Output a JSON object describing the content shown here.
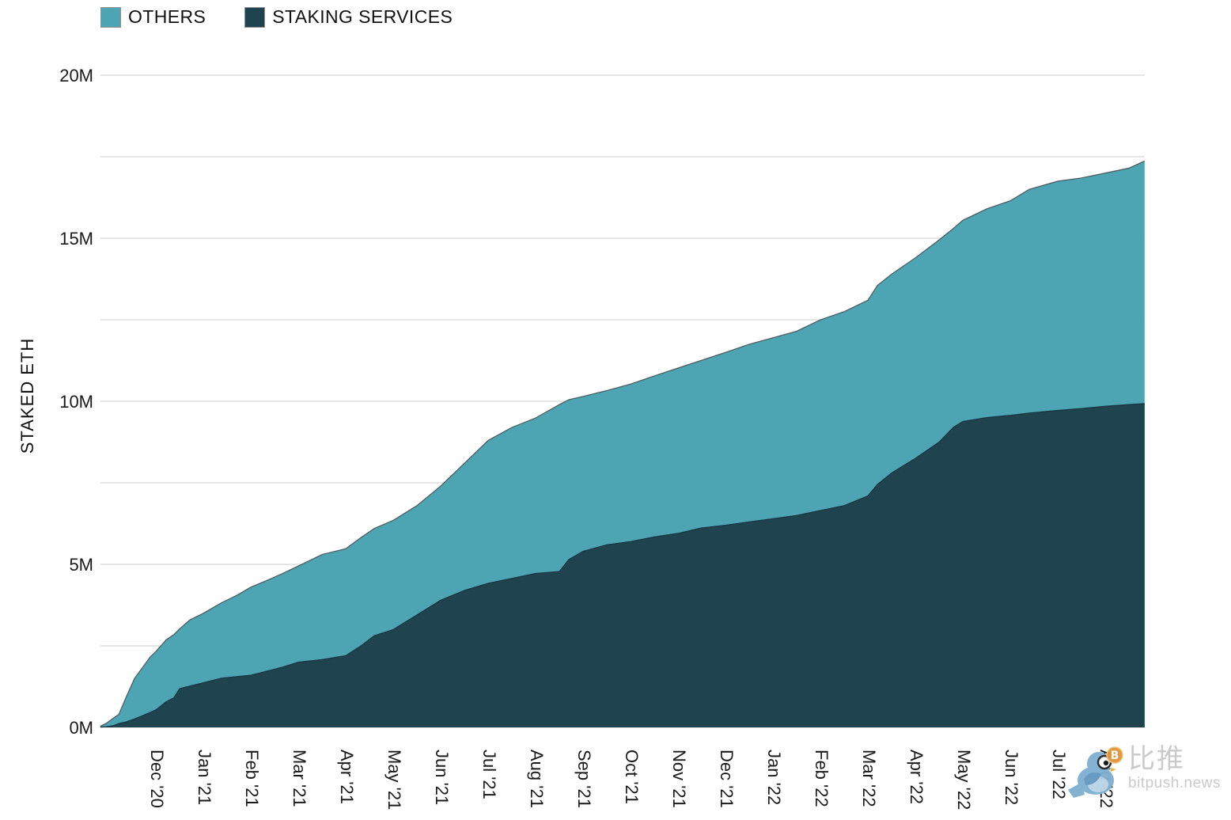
{
  "page": {
    "background": "#ffffff"
  },
  "legend": {
    "items": [
      {
        "label": "OTHERS",
        "color": "#4da4b3"
      },
      {
        "label": "STAKING SERVICES",
        "color": "#1f4450"
      }
    ]
  },
  "watermark": {
    "title": "比推",
    "subtitle": "bitpush.news",
    "bird_color": "#7fb0d2",
    "coin_color": "#e2943b"
  },
  "chart_data": {
    "type": "area",
    "stacked": true,
    "title": "",
    "xlabel": "",
    "ylabel": "STAKED ETH",
    "grid": true,
    "legend_position": "top-left",
    "y_axis": {
      "max": 20,
      "min": 0,
      "gridline_step": 2.5,
      "tick_labels": [
        {
          "value": 0,
          "label": "0M"
        },
        {
          "value": 5,
          "label": "5M"
        },
        {
          "value": 10,
          "label": "10M"
        },
        {
          "value": 15,
          "label": "15M"
        },
        {
          "value": 20,
          "label": "20M"
        }
      ]
    },
    "x_axis": {
      "unit": "months relative to Dec '20 tick",
      "tick_values": [
        0,
        1,
        2,
        3,
        4,
        5,
        6,
        7,
        8,
        9,
        10,
        11,
        12,
        13,
        14,
        15,
        16,
        17,
        18,
        19,
        20
      ],
      "tick_labels": [
        "Dec '20",
        "Jan '21",
        "Feb '21",
        "Mar '21",
        "Apr '21",
        "May '21",
        "Jun '21",
        "Jul '21",
        "Aug '21",
        "Sep '21",
        "Oct '21",
        "Nov '21",
        "Dec '21",
        "Jan '22",
        "Feb '22",
        "Mar '22",
        "Apr '22",
        "May '22",
        "Jun '22",
        "Jul '22",
        "Aug '22"
      ]
    },
    "x": [
      -1.17,
      -1.05,
      -0.9,
      -0.78,
      -0.62,
      -0.45,
      -0.28,
      -0.12,
      0,
      0.22,
      0.38,
      0.5,
      0.72,
      1,
      1.38,
      1.72,
      2,
      2.33,
      2.67,
      3,
      3.5,
      4,
      4.3,
      4.6,
      5,
      5.5,
      6,
      6.5,
      7,
      7.5,
      8,
      8.5,
      8.7,
      9,
      9.5,
      10,
      10.5,
      11,
      11.5,
      12,
      12.5,
      13,
      13.5,
      14,
      14.5,
      15,
      15.2,
      15.5,
      16,
      16.5,
      16.8,
      17,
      17.5,
      18,
      18.4,
      19,
      19.5,
      20,
      20.5,
      20.83
    ],
    "series": [
      {
        "name": "STAKING SERVICES",
        "color": "#1f4450",
        "values": [
          0.01,
          0.02,
          0.05,
          0.12,
          0.17,
          0.26,
          0.36,
          0.46,
          0.54,
          0.79,
          0.91,
          1.19,
          1.27,
          1.37,
          1.51,
          1.56,
          1.6,
          1.72,
          1.85,
          2.0,
          2.08,
          2.2,
          2.48,
          2.81,
          3.0,
          3.45,
          3.9,
          4.2,
          4.42,
          4.57,
          4.72,
          4.78,
          5.15,
          5.4,
          5.6,
          5.7,
          5.84,
          5.95,
          6.12,
          6.2,
          6.3,
          6.4,
          6.5,
          6.65,
          6.8,
          7.1,
          7.45,
          7.8,
          8.25,
          8.75,
          9.2,
          9.38,
          9.5,
          9.57,
          9.64,
          9.72,
          9.78,
          9.85,
          9.9,
          9.93
        ]
      },
      {
        "name": "OTHERS",
        "color": "#4da4b3",
        "values": [
          0.03,
          0.1,
          0.23,
          0.28,
          0.78,
          1.24,
          1.48,
          1.7,
          1.79,
          1.9,
          1.94,
          1.83,
          2.03,
          2.13,
          2.31,
          2.5,
          2.7,
          2.78,
          2.87,
          2.95,
          3.22,
          3.28,
          3.32,
          3.29,
          3.35,
          3.35,
          3.5,
          3.9,
          4.38,
          4.63,
          4.77,
          5.12,
          4.9,
          4.75,
          4.73,
          4.83,
          4.94,
          5.07,
          5.14,
          5.3,
          5.45,
          5.55,
          5.65,
          5.85,
          5.95,
          6.0,
          6.1,
          6.1,
          6.15,
          6.2,
          6.1,
          6.17,
          6.4,
          6.58,
          6.86,
          7.03,
          7.07,
          7.15,
          7.25,
          7.44
        ]
      }
    ]
  }
}
